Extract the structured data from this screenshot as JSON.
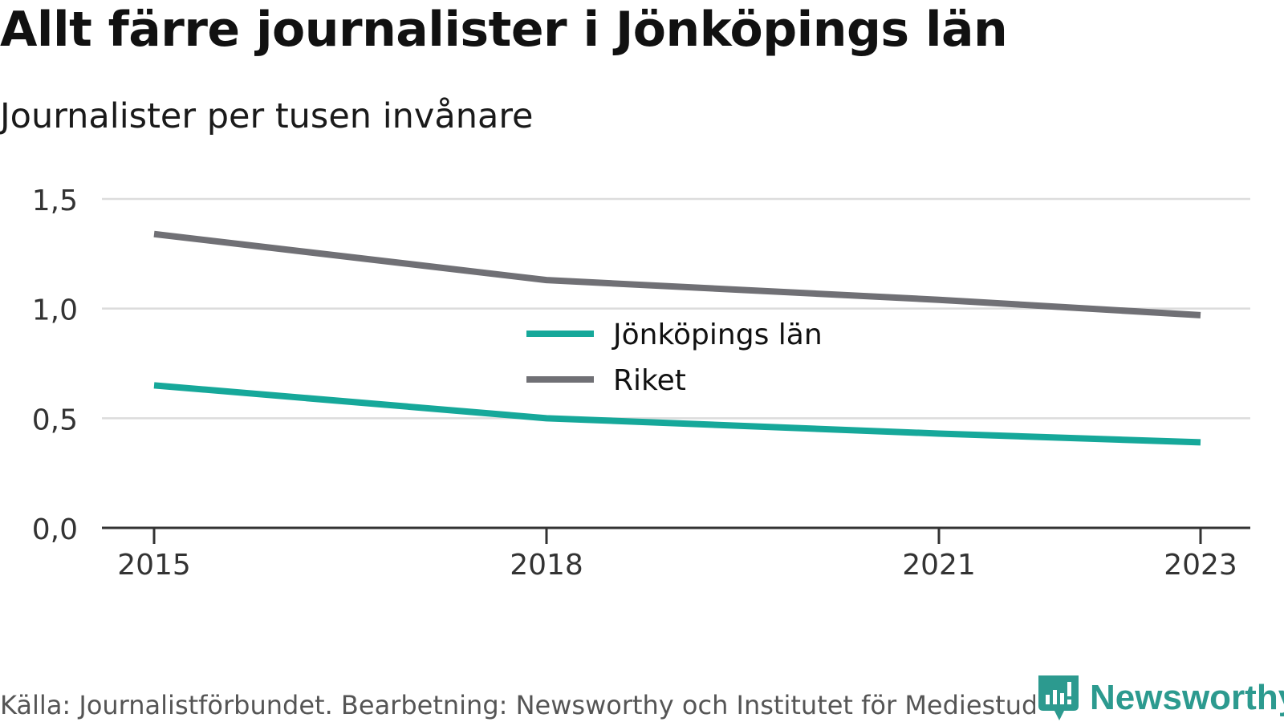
{
  "header": {
    "title": "Allt färre journalister i Jönköpings län",
    "subtitle": "Journalister per tusen invånare"
  },
  "footer": {
    "source": "Källa: Journalistförbundet. Bearbetning: Newsworthy och Institutet för Mediestudier",
    "brand": "Newsworthy",
    "brand_color": "#2c9a8f"
  },
  "chart_data": {
    "type": "line",
    "title": "Allt färre journalister i Jönköpings län",
    "subtitle": "Journalister per tusen invånare",
    "xlabel": "",
    "ylabel": "",
    "x": [
      2015,
      2018,
      2021,
      2023
    ],
    "x_tick_labels": [
      "2015",
      "2018",
      "2021",
      "2023"
    ],
    "y_ticks": [
      0,
      0.5,
      1.0,
      1.5
    ],
    "y_tick_labels": [
      "0,0",
      "0,5",
      "1,0",
      "1,5"
    ],
    "ylim": [
      0,
      1.5
    ],
    "grid": true,
    "legend_position": "center",
    "series": [
      {
        "name": "Jönköpings län",
        "color": "#16a89a",
        "values": [
          0.65,
          0.5,
          0.43,
          0.39
        ]
      },
      {
        "name": "Riket",
        "color": "#707075",
        "values": [
          1.34,
          1.13,
          1.04,
          0.97
        ]
      }
    ]
  }
}
